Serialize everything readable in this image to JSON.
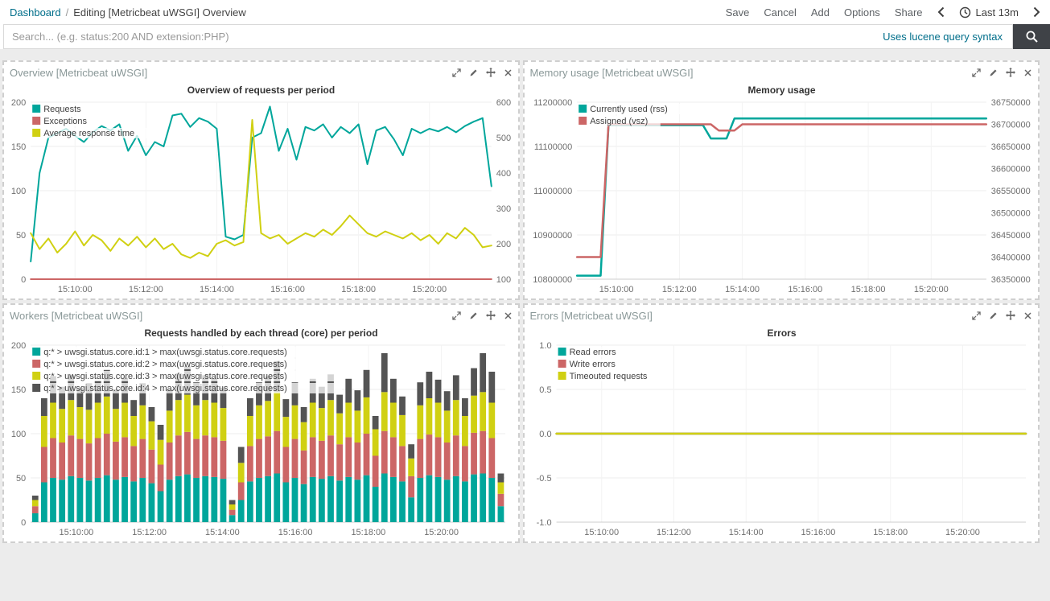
{
  "navbar": {
    "breadcrumb_root": "Dashboard",
    "breadcrumb_separator": "/",
    "breadcrumb_current": "Editing [Metricbeat uWSGI] Overview",
    "actions": [
      "Save",
      "Cancel",
      "Add",
      "Options",
      "Share"
    ],
    "time_label": "Last 13m"
  },
  "search": {
    "placeholder": "Search... (e.g. status:200 AND extension:PHP)",
    "syntax_hint": "Uses lucene query syntax"
  },
  "panels": [
    {
      "title": "Overview [Metricbeat uWSGI]"
    },
    {
      "title": "Memory usage [Metricbeat uWSGI]"
    },
    {
      "title": "Workers [Metricbeat uWSGI]"
    },
    {
      "title": "Errors [Metricbeat uWSGI]"
    }
  ],
  "colors": {
    "teal": "#00a69b",
    "red": "#cc6666",
    "yellow": "#d0d012",
    "dark_gray": "#545454",
    "link_teal": "#006e8a",
    "search_button_bg": "#3f4247",
    "dashboard_bg": "#ececec"
  },
  "chart_data": [
    {
      "type": "line",
      "title": "Overview of requests per period",
      "line_width": 2,
      "x_domain": [
        525,
        1305
      ],
      "x_step": 15,
      "n_points": 53,
      "x_tick_values": [
        600,
        720,
        840,
        960,
        1080,
        1200
      ],
      "x_tick_labels": [
        "15:10:00",
        "15:12:00",
        "15:14:00",
        "15:16:00",
        "15:18:00",
        "15:20:00"
      ],
      "y_left": {
        "min": 0,
        "max": 200,
        "tick_values": [
          0,
          50,
          100,
          150,
          200
        ],
        "tick_labels": [
          "0",
          "50",
          "100",
          "150",
          "200"
        ]
      },
      "y_right": {
        "min": 100,
        "max": 600,
        "tick_values": [
          100,
          200,
          300,
          400,
          500,
          600
        ],
        "tick_labels": [
          "100",
          "200",
          "300",
          "400",
          "500",
          "600"
        ]
      },
      "series": [
        {
          "name": "Requests",
          "color": "#00a69b",
          "axis": "left",
          "values": [
            20,
            120,
            160,
            165,
            170,
            162,
            155,
            166,
            173,
            168,
            175,
            145,
            162,
            140,
            155,
            150,
            185,
            187,
            172,
            182,
            178,
            170,
            48,
            45,
            50,
            160,
            165,
            195,
            145,
            170,
            135,
            172,
            168,
            175,
            160,
            172,
            165,
            175,
            130,
            168,
            172,
            158,
            140,
            170,
            165,
            170,
            167,
            172,
            166,
            173,
            178,
            182,
            105
          ]
        },
        {
          "name": "Exceptions",
          "color": "#cc6666",
          "axis": "left",
          "values": [
            0,
            0,
            0,
            0,
            0,
            0,
            0,
            0,
            0,
            0,
            0,
            0,
            0,
            0,
            0,
            0,
            0,
            0,
            0,
            0,
            0,
            0,
            0,
            0,
            0,
            0,
            0,
            0,
            0,
            0,
            0,
            0,
            0,
            0,
            0,
            0,
            0,
            0,
            0,
            0,
            0,
            0,
            0,
            0,
            0,
            0,
            0,
            0,
            0,
            0,
            0,
            0,
            0
          ]
        },
        {
          "name": "Average response time",
          "color": "#d0d012",
          "axis": "right",
          "values": [
            230,
            185,
            215,
            175,
            200,
            235,
            195,
            225,
            210,
            180,
            215,
            195,
            220,
            190,
            215,
            185,
            200,
            170,
            160,
            175,
            165,
            200,
            210,
            195,
            205,
            550,
            230,
            215,
            225,
            200,
            215,
            230,
            220,
            240,
            225,
            250,
            280,
            255,
            230,
            220,
            235,
            225,
            215,
            230,
            210,
            225,
            200,
            230,
            215,
            245,
            225,
            190,
            195
          ]
        }
      ]
    },
    {
      "type": "line",
      "title": "Memory usage",
      "line_width": 2.5,
      "x_domain": [
        525,
        1305
      ],
      "x_step": 15,
      "n_points": 53,
      "x_tick_values": [
        600,
        720,
        840,
        960,
        1080,
        1200
      ],
      "x_tick_labels": [
        "15:10:00",
        "15:12:00",
        "15:14:00",
        "15:16:00",
        "15:18:00",
        "15:20:00"
      ],
      "y_left": {
        "min": 10800000,
        "max": 11200000,
        "tick_values": [
          10800000,
          10900000,
          11000000,
          11100000,
          11200000
        ],
        "tick_labels": [
          "10800000",
          "10900000",
          "11000000",
          "11100000",
          "11200000"
        ]
      },
      "y_right": {
        "min": 36350000,
        "max": 36750000,
        "tick_values": [
          36350000,
          36400000,
          36450000,
          36500000,
          36550000,
          36600000,
          36650000,
          36700000,
          36750000
        ],
        "tick_labels": [
          "36350000",
          "36400000",
          "36450000",
          "36500000",
          "36550000",
          "36600000",
          "36650000",
          "36700000",
          "36750000"
        ]
      },
      "series": [
        {
          "name": "Currently used (rss)",
          "color": "#00a69b",
          "axis": "left",
          "values": [
            10808000,
            10808000,
            10808000,
            10808000,
            11148000,
            11148000,
            11148000,
            11148000,
            11148000,
            11148000,
            11148000,
            11148000,
            11148000,
            11148000,
            11148000,
            11148000,
            11148000,
            11118000,
            11118000,
            11118000,
            11163000,
            11163000,
            11163000,
            11163000,
            11163000,
            11163000,
            11163000,
            11163000,
            11163000,
            11163000,
            11163000,
            11163000,
            11163000,
            11163000,
            11163000,
            11163000,
            11163000,
            11163000,
            11163000,
            11163000,
            11163000,
            11163000,
            11163000,
            11163000,
            11163000,
            11163000,
            11163000,
            11163000,
            11163000,
            11163000,
            11163000,
            11163000,
            11163000
          ]
        },
        {
          "name": "Assigned (vsz)",
          "color": "#cc6666",
          "axis": "right",
          "values": [
            36400000,
            36400000,
            36400000,
            36400000,
            36700000,
            36700000,
            36700000,
            36700000,
            36700000,
            36700000,
            36700000,
            36700000,
            36700000,
            36700000,
            36700000,
            36700000,
            36700000,
            36700000,
            36686000,
            36686000,
            36686000,
            36700000,
            36700000,
            36700000,
            36700000,
            36700000,
            36700000,
            36700000,
            36700000,
            36700000,
            36700000,
            36700000,
            36700000,
            36700000,
            36700000,
            36700000,
            36700000,
            36700000,
            36700000,
            36700000,
            36700000,
            36700000,
            36700000,
            36700000,
            36700000,
            36700000,
            36700000,
            36700000,
            36700000,
            36700000,
            36700000,
            36700000,
            36700000
          ]
        }
      ]
    },
    {
      "type": "bar_stacked",
      "title": "Requests handled by each thread (core) per period",
      "x_domain": [
        525,
        1305
      ],
      "x_step": 15,
      "n_points": 53,
      "x_tick_values": [
        600,
        720,
        840,
        960,
        1080,
        1200
      ],
      "x_tick_labels": [
        "15:10:00",
        "15:12:00",
        "15:14:00",
        "15:16:00",
        "15:18:00",
        "15:20:00"
      ],
      "y_left": {
        "min": 0,
        "max": 200,
        "tick_values": [
          0,
          50,
          100,
          150,
          200
        ],
        "tick_labels": [
          "0",
          "50",
          "100",
          "150",
          "200"
        ]
      },
      "series": [
        {
          "name": "q:* > uwsgi.status.core.id:1 > max(uwsgi.status.core.requests)",
          "color": "#00a69b",
          "axis": "left",
          "values": [
            10,
            45,
            50,
            48,
            52,
            50,
            47,
            50,
            53,
            48,
            51,
            46,
            50,
            44,
            35,
            48,
            52,
            54,
            50,
            52,
            51,
            49,
            8,
            25,
            46,
            50,
            52,
            55,
            45,
            50,
            43,
            51,
            49,
            52,
            47,
            51,
            48,
            53,
            40,
            55,
            51,
            46,
            28,
            50,
            53,
            51,
            48,
            52,
            46,
            54,
            55,
            50,
            18
          ]
        },
        {
          "name": "q:* > uwsgi.status.core.id:2 > max(uwsgi.status.core.requests)",
          "color": "#cc6666",
          "axis": "left",
          "values": [
            8,
            40,
            45,
            42,
            46,
            44,
            42,
            45,
            47,
            43,
            45,
            40,
            44,
            38,
            30,
            42,
            46,
            48,
            44,
            46,
            45,
            43,
            6,
            20,
            40,
            44,
            45,
            48,
            40,
            44,
            38,
            45,
            43,
            46,
            41,
            45,
            42,
            47,
            35,
            48,
            45,
            40,
            24,
            44,
            46,
            45,
            42,
            46,
            40,
            47,
            48,
            45,
            14
          ]
        },
        {
          "name": "q:* > uwsgi.status.core.id:3 > max(uwsgi.status.core.requests)",
          "color": "#d0d012",
          "axis": "left",
          "values": [
            7,
            35,
            40,
            38,
            40,
            36,
            38,
            40,
            42,
            37,
            39,
            34,
            38,
            32,
            28,
            36,
            40,
            42,
            38,
            40,
            39,
            37,
            6,
            22,
            34,
            38,
            40,
            44,
            34,
            38,
            32,
            39,
            37,
            40,
            35,
            39,
            36,
            41,
            30,
            44,
            39,
            35,
            20,
            38,
            41,
            39,
            36,
            40,
            34,
            42,
            44,
            40,
            13
          ]
        },
        {
          "name": "q:* > uwsgi.status.core.id:4 > max(uwsgi.status.core.requests)",
          "color": "#545454",
          "axis": "left",
          "values": [
            5,
            20,
            30,
            25,
            28,
            22,
            30,
            25,
            30,
            22,
            28,
            18,
            25,
            16,
            17,
            24,
            30,
            32,
            26,
            28,
            27,
            23,
            5,
            18,
            20,
            26,
            28,
            35,
            20,
            26,
            17,
            27,
            24,
            29,
            21,
            27,
            23,
            31,
            15,
            44,
            27,
            21,
            16,
            26,
            30,
            26,
            22,
            28,
            20,
            31,
            44,
            35,
            10
          ]
        }
      ]
    },
    {
      "type": "line",
      "title": "Errors",
      "line_width": 2.5,
      "x_domain": [
        525,
        1305
      ],
      "x_step": 15,
      "n_points": 53,
      "x_tick_values": [
        600,
        720,
        840,
        960,
        1080,
        1200
      ],
      "x_tick_labels": [
        "15:10:00",
        "15:12:00",
        "15:14:00",
        "15:16:00",
        "15:18:00",
        "15:20:00"
      ],
      "y_left": {
        "min": -1,
        "max": 1,
        "tick_values": [
          -1,
          -0.5,
          0,
          0.5,
          1
        ],
        "tick_labels": [
          "-1.0",
          "-0.5",
          "0.0",
          "0.5",
          "1.0"
        ]
      },
      "series": [
        {
          "name": "Read errors",
          "color": "#00a69b",
          "axis": "left",
          "values": [
            0,
            0,
            0,
            0,
            0,
            0,
            0,
            0,
            0,
            0,
            0,
            0,
            0,
            0,
            0,
            0,
            0,
            0,
            0,
            0,
            0,
            0,
            0,
            0,
            0,
            0,
            0,
            0,
            0,
            0,
            0,
            0,
            0,
            0,
            0,
            0,
            0,
            0,
            0,
            0,
            0,
            0,
            0,
            0,
            0,
            0,
            0,
            0,
            0,
            0,
            0,
            0,
            0
          ]
        },
        {
          "name": "Write errors",
          "color": "#cc6666",
          "axis": "left",
          "values": [
            0,
            0,
            0,
            0,
            0,
            0,
            0,
            0,
            0,
            0,
            0,
            0,
            0,
            0,
            0,
            0,
            0,
            0,
            0,
            0,
            0,
            0,
            0,
            0,
            0,
            0,
            0,
            0,
            0,
            0,
            0,
            0,
            0,
            0,
            0,
            0,
            0,
            0,
            0,
            0,
            0,
            0,
            0,
            0,
            0,
            0,
            0,
            0,
            0,
            0,
            0,
            0,
            0
          ]
        },
        {
          "name": "Timeouted requests",
          "color": "#d0d012",
          "axis": "left",
          "values": [
            0,
            0,
            0,
            0,
            0,
            0,
            0,
            0,
            0,
            0,
            0,
            0,
            0,
            0,
            0,
            0,
            0,
            0,
            0,
            0,
            0,
            0,
            0,
            0,
            0,
            0,
            0,
            0,
            0,
            0,
            0,
            0,
            0,
            0,
            0,
            0,
            0,
            0,
            0,
            0,
            0,
            0,
            0,
            0,
            0,
            0,
            0,
            0,
            0,
            0,
            0,
            0,
            0
          ]
        }
      ]
    }
  ]
}
